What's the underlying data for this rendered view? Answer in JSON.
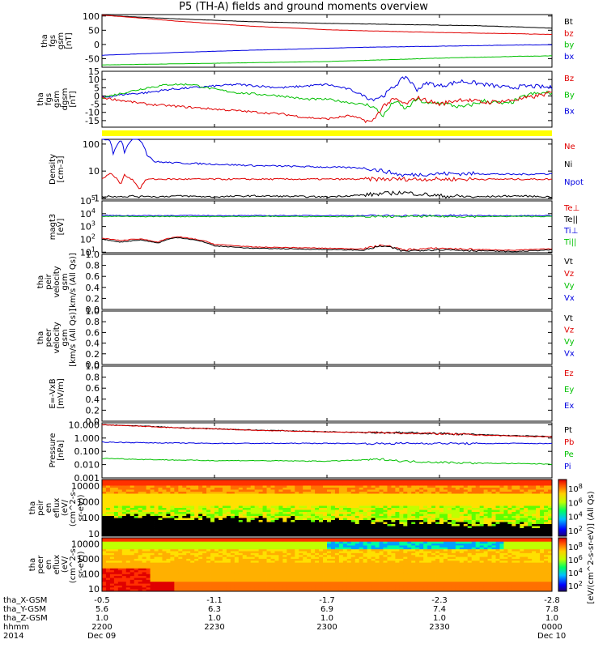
{
  "title": "P5 (TH-A) fields and ground moments overview",
  "colors": {
    "black": "#000000",
    "red": "#e00000",
    "green": "#00c000",
    "blue": "#0000e0",
    "yellow": "#ffff00"
  },
  "chart_data": [
    {
      "id": "fgs_gsm",
      "type": "line",
      "ylabel": [
        "tha",
        "fgs",
        "gsm",
        "[nT]"
      ],
      "ylim": [
        -80,
        105
      ],
      "yticks": [
        100,
        50,
        0,
        -50
      ],
      "legend": [
        {
          "name": "Bt",
          "color": "#000000"
        },
        {
          "name": "bz",
          "color": "#e00000"
        },
        {
          "name": "by",
          "color": "#00c000"
        },
        {
          "name": "bx",
          "color": "#0000e0"
        }
      ],
      "x": [
        0,
        10,
        20,
        30,
        40,
        50,
        60,
        70,
        80,
        90,
        100,
        110,
        120
      ],
      "series": [
        {
          "name": "Bt",
          "color": "#000000",
          "values": [
            103,
            96,
            90,
            85,
            80,
            77,
            74,
            72,
            70,
            68,
            66,
            62,
            57
          ]
        },
        {
          "name": "bz",
          "color": "#e00000",
          "values": [
            103,
            93,
            82,
            73,
            64,
            58,
            52,
            48,
            45,
            42,
            40,
            38,
            35
          ]
        },
        {
          "name": "bx",
          "color": "#0000e0",
          "values": [
            -38,
            -33,
            -28,
            -24,
            -20,
            -17,
            -13,
            -10,
            -8,
            -6,
            -4,
            -2,
            -1
          ]
        },
        {
          "name": "by",
          "color": "#00c000",
          "values": [
            -72,
            -70,
            -68,
            -66,
            -64,
            -62,
            -60,
            -56,
            -52,
            -48,
            -45,
            -42,
            -40
          ]
        }
      ]
    },
    {
      "id": "fgs_dgsm",
      "type": "line",
      "ylabel": [
        "tha",
        "fgs",
        "gsm",
        "dgsm",
        "[nT]"
      ],
      "ylim": [
        -19,
        15
      ],
      "yticks": [
        15,
        10,
        5,
        0,
        -5,
        -10,
        -15
      ],
      "legend": [
        {
          "name": "Bz",
          "color": "#e00000"
        },
        {
          "name": "By",
          "color": "#00c000"
        },
        {
          "name": "Bx",
          "color": "#0000e0"
        }
      ],
      "x": [
        0,
        6,
        12,
        18,
        24,
        30,
        36,
        42,
        48,
        54,
        60,
        66,
        72,
        75,
        78,
        81,
        84,
        87,
        90,
        96,
        102,
        108,
        114,
        120
      ],
      "series": [
        {
          "name": "Bx",
          "color": "#0000e0",
          "values": [
            -1,
            1,
            2,
            4,
            5,
            6,
            7,
            6,
            5,
            6,
            7,
            4,
            -2,
            0,
            6,
            12,
            4,
            8,
            6,
            9,
            7,
            5,
            6,
            5
          ]
        },
        {
          "name": "By",
          "color": "#00c000",
          "values": [
            -1,
            2,
            5,
            7,
            7,
            4,
            2,
            1,
            0,
            -2,
            -2,
            -4,
            -6,
            -12,
            -3,
            -8,
            -2,
            -5,
            -4,
            -7,
            -3,
            -5,
            1,
            2
          ]
        },
        {
          "name": "Bz",
          "color": "#e00000",
          "values": [
            -1,
            -3,
            -5,
            -6,
            -7,
            -8,
            -9,
            -10,
            -11,
            -13,
            -14,
            -12,
            -16,
            -6,
            -2,
            -5,
            -1,
            -3,
            -5,
            -2,
            -4,
            -3,
            -1,
            2
          ]
        }
      ]
    },
    {
      "id": "density",
      "type": "line",
      "ylabel": [
        "Density",
        "[cm-3]"
      ],
      "ylog": true,
      "ylim": [
        0.9,
        150
      ],
      "yticks": [
        100,
        10,
        1
      ],
      "legend": [
        {
          "name": "Ne",
          "color": "#e00000"
        },
        {
          "name": "Ni",
          "color": "#000000"
        },
        {
          "name": "Npot",
          "color": "#0000e0"
        }
      ],
      "x": [
        0,
        2,
        3,
        5,
        6,
        8,
        10,
        12,
        14,
        20,
        30,
        40,
        60,
        70,
        80,
        90,
        100,
        110,
        120
      ],
      "series": [
        {
          "name": "Npot",
          "color": "#0000e0",
          "values": [
            150,
            150,
            40,
            150,
            50,
            150,
            150,
            40,
            22,
            20,
            18,
            16,
            14,
            13,
            7,
            8,
            8,
            7.5,
            8
          ]
        },
        {
          "name": "Ne",
          "color": "#e00000",
          "values": [
            5,
            8,
            7,
            3,
            7,
            5,
            2,
            5,
            5,
            5,
            5,
            5,
            5,
            5,
            5,
            5,
            5,
            5,
            5
          ]
        },
        {
          "name": "Ni",
          "color": "#000000",
          "values": [
            1.1,
            1.2,
            1.1,
            1.2,
            1.1,
            1.2,
            1.1,
            1.2,
            1.1,
            1.2,
            1.1,
            1.2,
            1.1,
            1.3,
            1.6,
            1.2,
            1.1,
            1.2,
            1.1
          ]
        }
      ]
    },
    {
      "id": "temperature",
      "type": "line",
      "ylabel": [
        "magt3",
        "[eV]"
      ],
      "ylog": true,
      "ylim": [
        9,
        100000
      ],
      "yticks": [
        "10^5",
        "10^4",
        "10^3",
        "10^2",
        "10^1"
      ],
      "legend": [
        {
          "name": "Te⊥",
          "color": "#e00000"
        },
        {
          "name": "Te||",
          "color": "#000000"
        },
        {
          "name": "Ti⊥",
          "color": "#0000e0"
        },
        {
          "name": "Ti||",
          "color": "#00c000"
        }
      ],
      "x": [
        0,
        5,
        10,
        15,
        20,
        30,
        40,
        60,
        70,
        75,
        80,
        90,
        100,
        110,
        120
      ],
      "series": [
        {
          "name": "Ti⊥",
          "color": "#0000e0",
          "values": [
            7500,
            7000,
            7200,
            7000,
            7300,
            7100,
            7000,
            7200,
            7000,
            7100,
            7000,
            7200,
            7100,
            7000,
            7200
          ]
        },
        {
          "name": "Ti||",
          "color": "#00c000",
          "values": [
            6000,
            6200,
            5800,
            6100,
            6000,
            5900,
            6100,
            6000,
            6000,
            5800,
            6100,
            6000,
            5900,
            6100,
            6000
          ]
        },
        {
          "name": "Te⊥",
          "color": "#e00000",
          "values": [
            120,
            80,
            110,
            60,
            160,
            40,
            25,
            20,
            18,
            35,
            15,
            20,
            16,
            14,
            18
          ]
        },
        {
          "name": "Te||",
          "color": "#000000",
          "values": [
            100,
            60,
            90,
            50,
            140,
            30,
            20,
            16,
            14,
            30,
            12,
            16,
            13,
            11,
            15
          ]
        }
      ]
    },
    {
      "id": "peir_velocity",
      "type": "line",
      "ylabel": [
        "tha",
        "peir",
        "velocity",
        "gsm",
        "[km/s (All Qs)]"
      ],
      "ylim": [
        0,
        1
      ],
      "yticks": [
        "1.0",
        "0.8",
        "0.6",
        "0.4",
        "0.2",
        "0.0"
      ],
      "legend": [
        {
          "name": "Vt",
          "color": "#000000"
        },
        {
          "name": "Vz",
          "color": "#e00000"
        },
        {
          "name": "Vy",
          "color": "#00c000"
        },
        {
          "name": "Vx",
          "color": "#0000e0"
        }
      ],
      "series": []
    },
    {
      "id": "peer_velocity",
      "type": "line",
      "ylabel": [
        "tha",
        "peer",
        "velocity",
        "gsm",
        "[km/s (All Qs)]"
      ],
      "ylim": [
        0,
        1
      ],
      "yticks": [
        "1.0",
        "0.8",
        "0.6",
        "0.4",
        "0.2",
        "0.0"
      ],
      "legend": [
        {
          "name": "Vt",
          "color": "#000000"
        },
        {
          "name": "Vz",
          "color": "#e00000"
        },
        {
          "name": "Vy",
          "color": "#00c000"
        },
        {
          "name": "Vx",
          "color": "#0000e0"
        }
      ],
      "series": []
    },
    {
      "id": "efield",
      "type": "line",
      "ylabel": [
        "E=-VxB",
        "[mV/m]"
      ],
      "ylim": [
        0,
        1
      ],
      "yticks": [
        "1.0",
        "0.8",
        "0.6",
        "0.4",
        "0.2",
        "0.0"
      ],
      "legend": [
        {
          "name": "Ez",
          "color": "#e00000"
        },
        {
          "name": "Ey",
          "color": "#00c000"
        },
        {
          "name": "Ex",
          "color": "#0000e0"
        }
      ],
      "series": []
    },
    {
      "id": "pressure",
      "type": "line",
      "ylabel": [
        "Pressure",
        "[nPa]"
      ],
      "ylog": true,
      "ylim": [
        0.001,
        14
      ],
      "yticks": [
        "10.000",
        "1.000",
        "0.100",
        "0.010",
        "0.001"
      ],
      "legend": [
        {
          "name": "Pt",
          "color": "#000000"
        },
        {
          "name": "Pb",
          "color": "#e00000"
        },
        {
          "name": "Pe",
          "color": "#00c000"
        },
        {
          "name": "Pi",
          "color": "#0000e0"
        }
      ],
      "x": [
        0,
        10,
        20,
        30,
        40,
        60,
        75,
        80,
        90,
        100,
        110,
        120
      ],
      "series": [
        {
          "name": "Pt",
          "color": "#000000",
          "values": [
            10,
            8,
            6,
            5,
            4,
            3,
            2.6,
            2.5,
            2.2,
            1.8,
            1.5,
            1.3
          ]
        },
        {
          "name": "Pb",
          "color": "#e00000",
          "values": [
            10,
            7.8,
            5.8,
            4.8,
            3.9,
            2.9,
            2.5,
            2.4,
            2.1,
            1.7,
            1.4,
            1.2
          ]
        },
        {
          "name": "Pi",
          "color": "#0000e0",
          "values": [
            0.5,
            0.45,
            0.42,
            0.4,
            0.4,
            0.4,
            0.38,
            0.4,
            0.4,
            0.38,
            0.4,
            0.38
          ]
        },
        {
          "name": "Pe",
          "color": "#00c000",
          "values": [
            0.03,
            0.025,
            0.022,
            0.02,
            0.02,
            0.018,
            0.025,
            0.018,
            0.015,
            0.013,
            0.012,
            0.011
          ]
        }
      ]
    },
    {
      "id": "peir_eflux",
      "type": "heatmap",
      "ylabel": [
        "tha",
        "peir",
        "en",
        "eflux",
        "(eV/",
        "(cm^2-s-",
        "sr-eV))"
      ],
      "ylog": true,
      "ylim": [
        7,
        25000
      ],
      "yticks": [
        "10000",
        "1000",
        "100",
        "10"
      ],
      "colorbar_ticks": [
        "10^8",
        "10^6",
        "10^4",
        "10^2"
      ]
    },
    {
      "id": "peer_eflux",
      "type": "heatmap",
      "ylabel": [
        "tha",
        "peer",
        "en",
        "eflux",
        "(eV/",
        "(cm^2-s-",
        "sr-eV))"
      ],
      "ylog": true,
      "ylim": [
        7,
        25000
      ],
      "yticks": [
        "10000",
        "1000",
        "100",
        "10"
      ],
      "colorbar_ticks": [
        "10^8",
        "10^6",
        "10^4",
        "10^2"
      ]
    }
  ],
  "colorbar_label": "[eV/(cm^2-s-sr-eV)] (All Qs)",
  "footer": {
    "rows": [
      {
        "label": "tha_X-GSM",
        "values": [
          "-0.5",
          "-1.1",
          "-1.7",
          "-2.3",
          "-2.8"
        ]
      },
      {
        "label": "tha_Y-GSM",
        "values": [
          "5.6",
          "6.3",
          "6.9",
          "7.4",
          "7.8"
        ]
      },
      {
        "label": "tha_Z-GSM",
        "values": [
          "1.0",
          "1.0",
          "1.0",
          "1.0",
          "1.0"
        ]
      },
      {
        "label": "hhmm",
        "values": [
          "2200",
          "2230",
          "2300",
          "2330",
          "0000"
        ]
      },
      {
        "label": "2014",
        "values": [
          "Dec 09",
          "",
          "",
          "",
          "Dec 10"
        ]
      }
    ]
  }
}
